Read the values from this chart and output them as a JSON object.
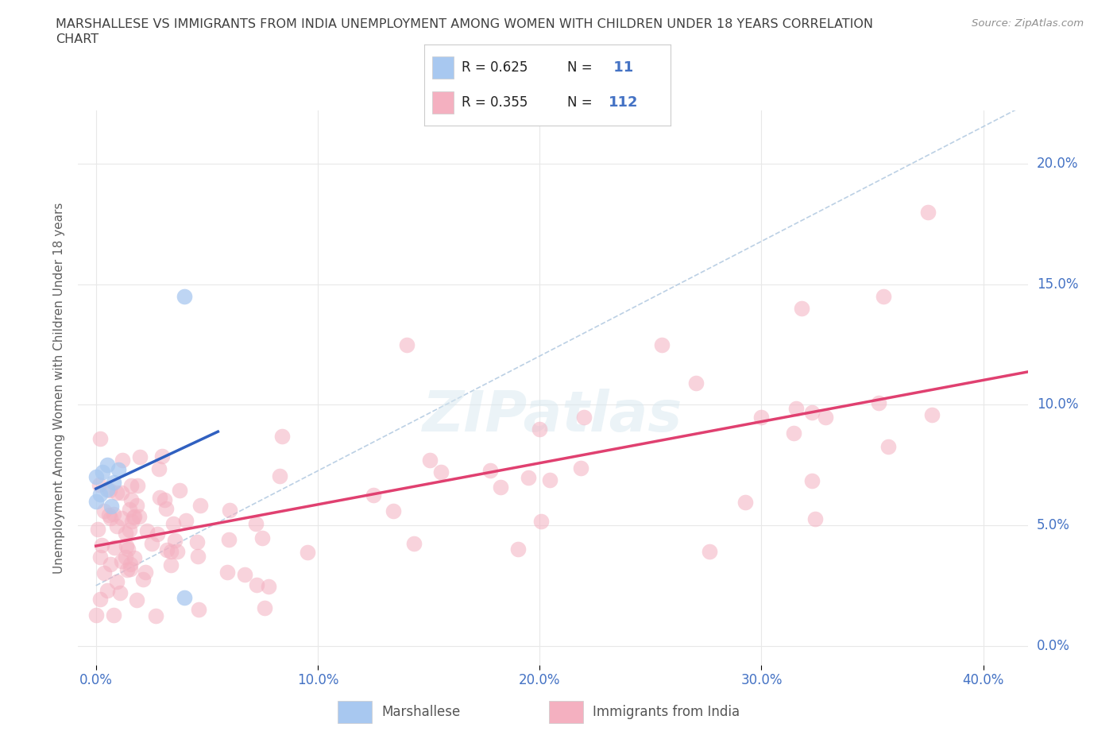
{
  "title_line1": "MARSHALLESE VS IMMIGRANTS FROM INDIA UNEMPLOYMENT AMONG WOMEN WITH CHILDREN UNDER 18 YEARS CORRELATION",
  "title_line2": "CHART",
  "source": "Source: ZipAtlas.com",
  "ylabel": "Unemployment Among Women with Children Under 18 years",
  "x_ticks": [
    0.0,
    0.1,
    0.2,
    0.3,
    0.4
  ],
  "x_tick_labels": [
    "0.0%",
    "10.0%",
    "20.0%",
    "30.0%",
    "40.0%"
  ],
  "y_ticks": [
    0.0,
    0.05,
    0.1,
    0.15,
    0.2
  ],
  "y_tick_labels": [
    "0.0%",
    "5.0%",
    "10.0%",
    "15.0%",
    "20.0%"
  ],
  "marshallese_color": "#a8c8f0",
  "india_color": "#f4b0c0",
  "marshallese_line_color": "#3060c0",
  "india_line_color": "#e04070",
  "dash_line_color": "#b0c8e0",
  "background_color": "#ffffff",
  "grid_color": "#e8e8e8",
  "text_blue": "#4472c4",
  "title_color": "#404040",
  "source_color": "#909090",
  "legend_label_marshallese": "Marshallese",
  "legend_label_india": "Immigrants from India",
  "marshallese_R": "0.625",
  "marshallese_N": "11",
  "india_R": "0.355",
  "india_N": "112"
}
